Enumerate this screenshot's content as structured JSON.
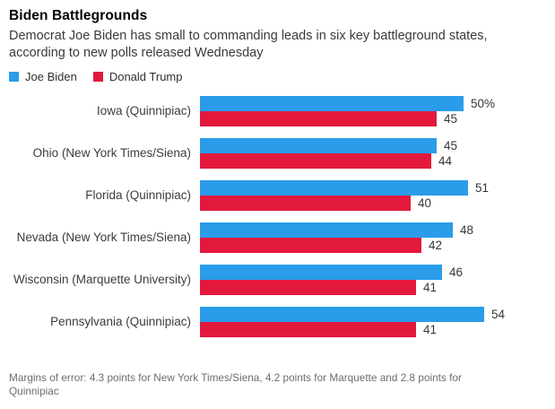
{
  "header": {
    "title": "Biden Battlegrounds",
    "subtitle": "Democrat Joe Biden has small to commanding leads in six key battleground states, according to new polls released Wednesday"
  },
  "legend": {
    "items": [
      {
        "label": "Joe Biden",
        "color": "#2A9CEA"
      },
      {
        "label": "Donald Trump",
        "color": "#E2193D"
      }
    ]
  },
  "footer": {
    "note": "Margins of error: 4.3 points for New York Times/Siena, 4.2 points for Marquette and 2.8 points for Quinnipiac"
  },
  "chart_data": {
    "type": "bar",
    "orientation": "horizontal",
    "title": "Biden Battlegrounds",
    "subtitle": "Democrat Joe Biden has small to commanding leads in six key battleground states, according to new polls released Wednesday",
    "footnote": "Margins of error: 4.3 points for New York Times/Siena, 4.2 points for Marquette and 2.8 points for Quinnipiac",
    "categories": [
      "Iowa (Quinnipiac)",
      "Ohio (New York Times/Siena)",
      "Florida (Quinnipiac)",
      "Nevada (New York Times/Siena)",
      "Wisconsin (Marquette University)",
      "Pennsylvania (Quinnipiac)"
    ],
    "series": [
      {
        "name": "Joe Biden",
        "color": "#2A9CEA",
        "values": [
          50,
          45,
          51,
          48,
          46,
          54
        ],
        "labels": [
          "50%",
          "45",
          "51",
          "48",
          "46",
          "54"
        ]
      },
      {
        "name": "Donald Trump",
        "color": "#E2193D",
        "values": [
          45,
          44,
          40,
          42,
          41,
          41
        ],
        "labels": [
          "45",
          "44",
          "40",
          "42",
          "41",
          "41"
        ]
      }
    ],
    "xlim": [
      0,
      54
    ],
    "value_labels": "end-of-bar",
    "grid": false,
    "legend_position": "top-left"
  }
}
